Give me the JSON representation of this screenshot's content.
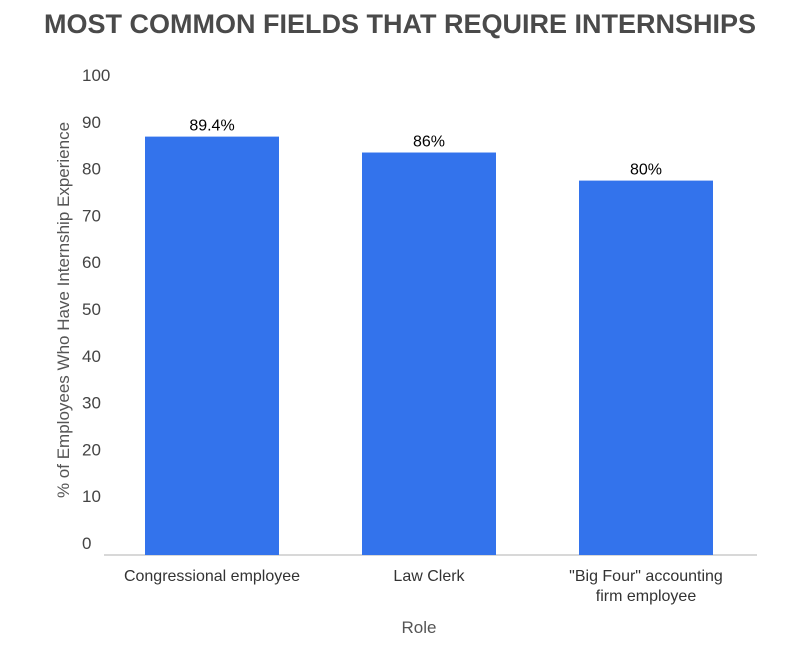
{
  "chart_data": {
    "type": "bar",
    "title": "MOST COMMON FIELDS THAT REQUIRE INTERNSHIPS",
    "xlabel": "Role",
    "ylabel": "% of Employees Who Have Internship Experience",
    "categories": [
      "Congressional employee",
      "Law Clerk",
      "\"Big Four\" accounting firm employee"
    ],
    "category_lines": [
      [
        "Congressional employee"
      ],
      [
        "Law Clerk"
      ],
      [
        "\"Big Four\" accounting",
        "firm employee"
      ]
    ],
    "values": [
      89.4,
      86,
      80
    ],
    "data_labels": [
      "89.4%",
      "86%",
      "80%"
    ],
    "ylim": [
      0,
      100
    ],
    "yticks": [
      "0",
      "10",
      "20",
      "30",
      "40",
      "50",
      "60",
      "70",
      "80",
      "90",
      "100"
    ],
    "grid": false,
    "bar_color": "#3373ec"
  }
}
